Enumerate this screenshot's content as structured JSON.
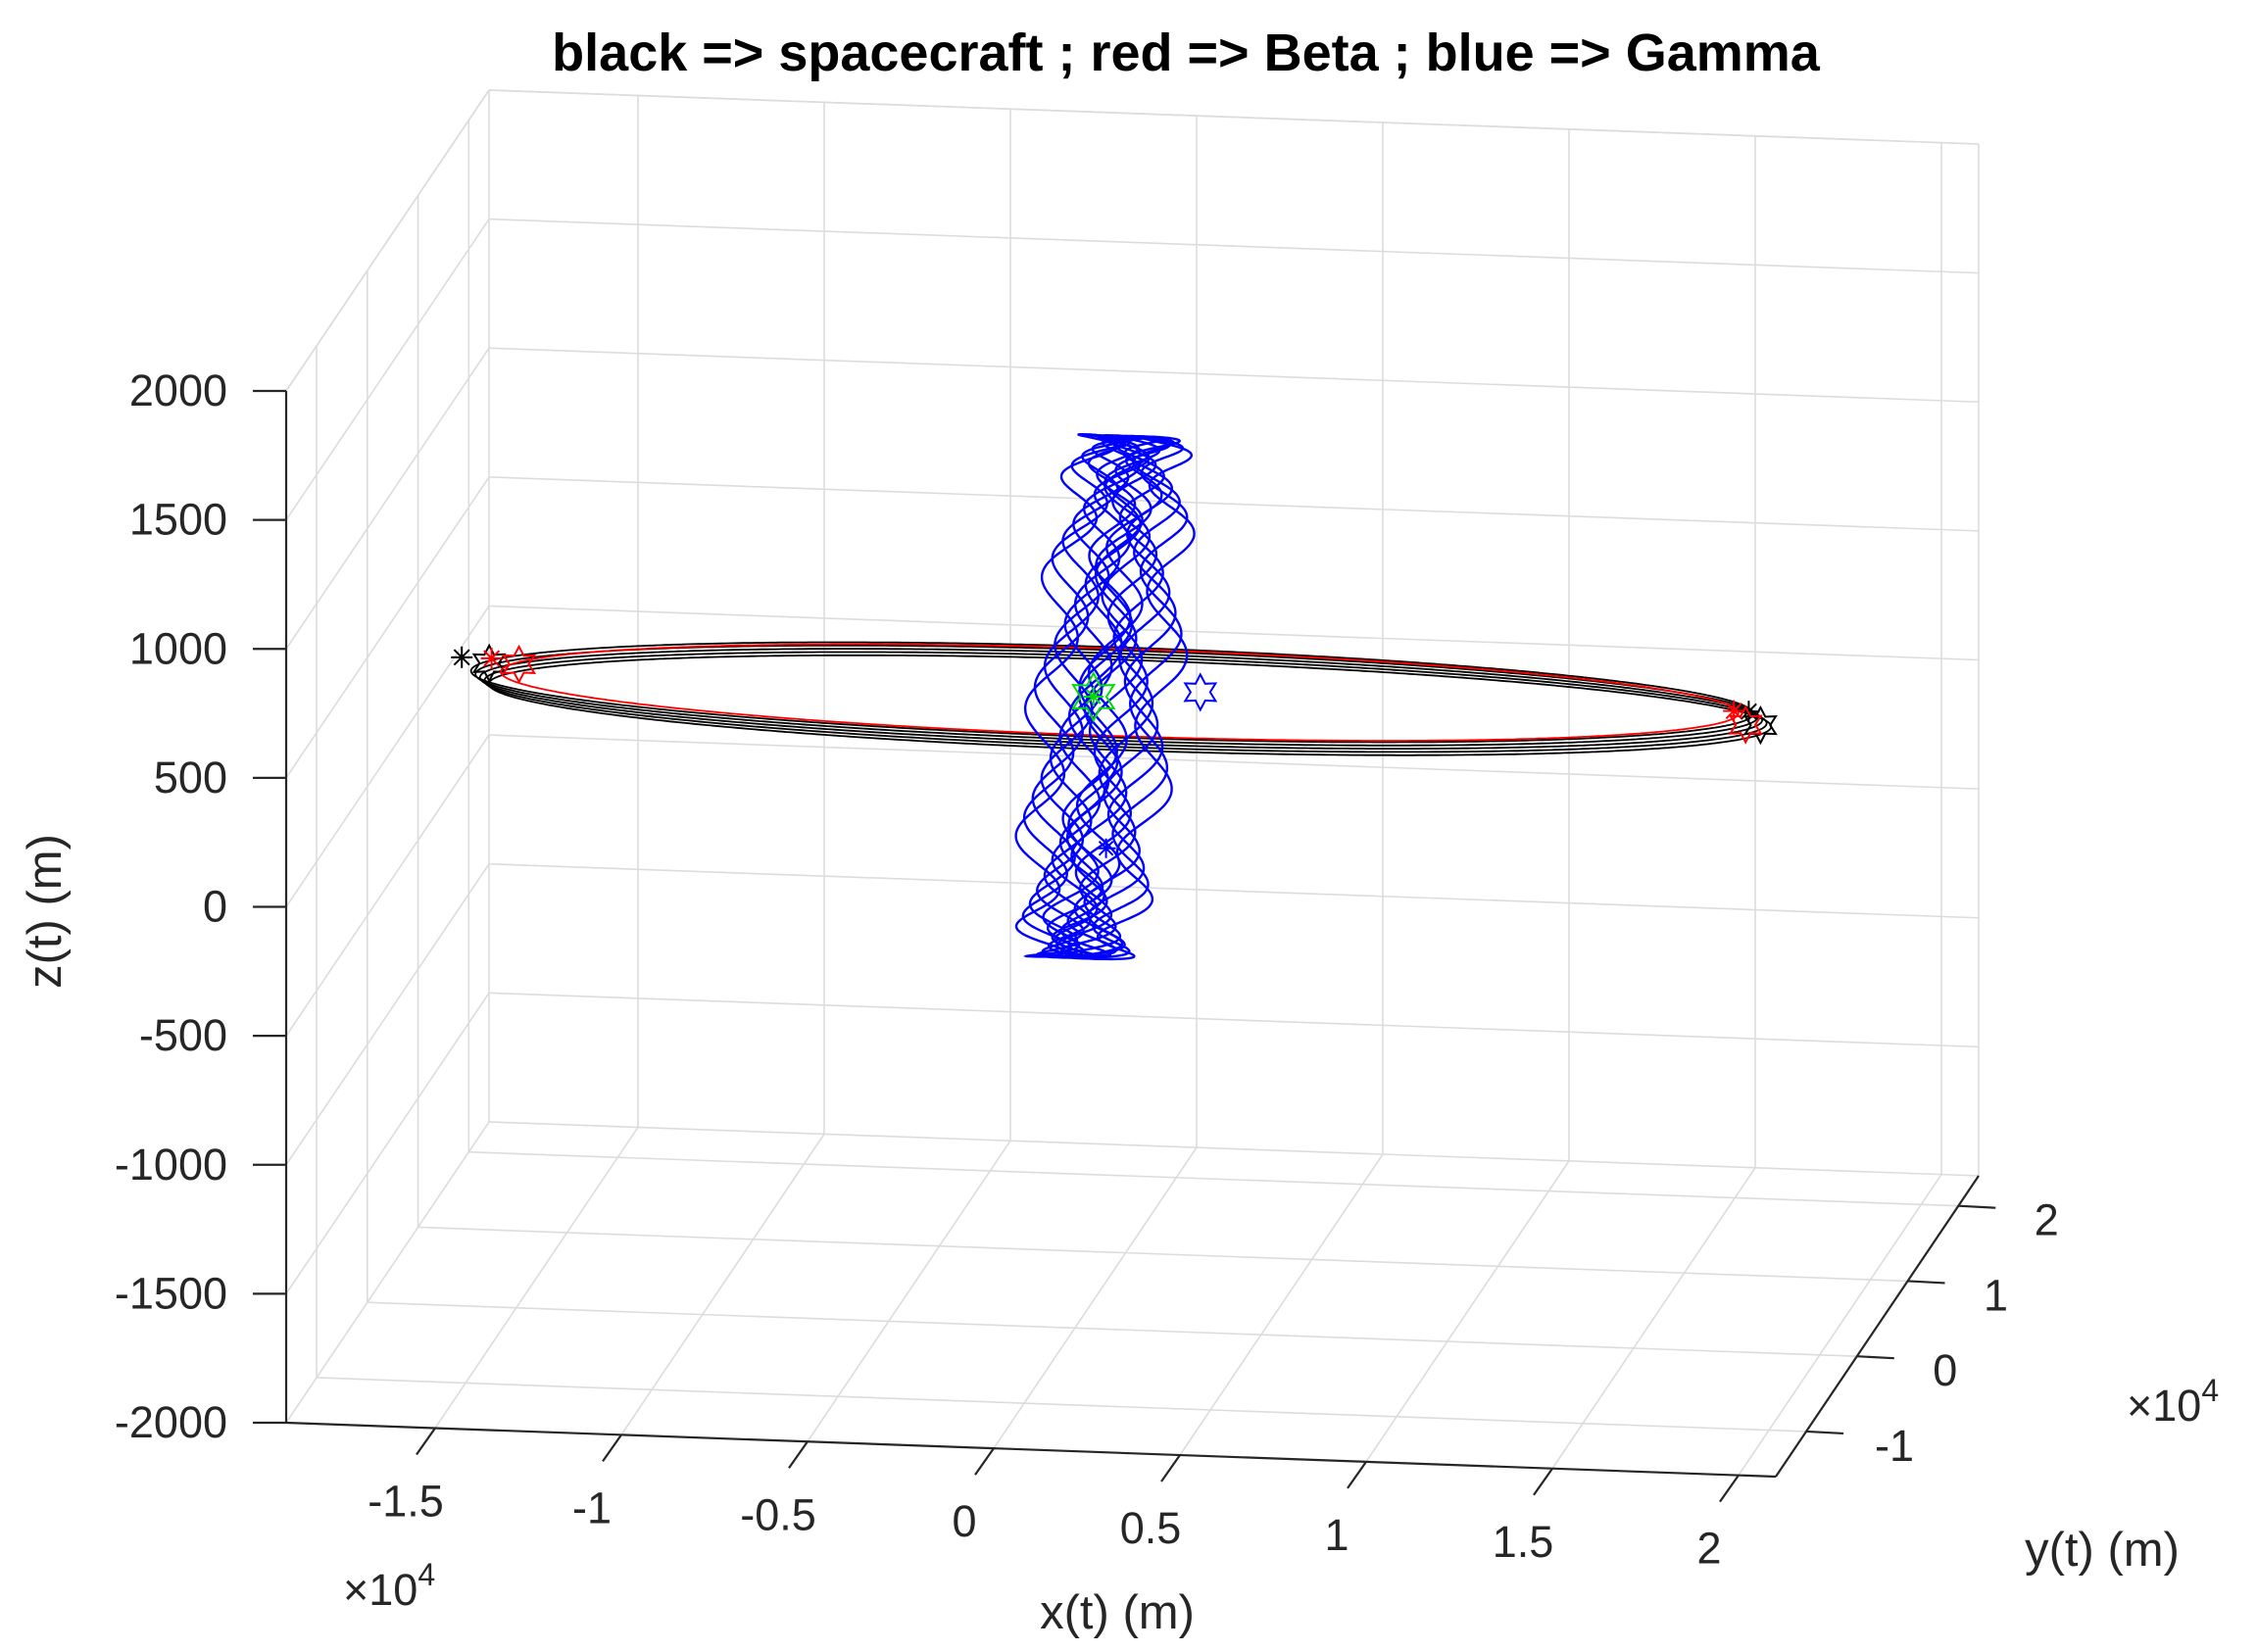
{
  "chart_data": {
    "type": "line",
    "title": "black => spacecraft ;    red => Beta ;     blue => Gamma",
    "xlabel": "x(t)   (m)",
    "ylabel": "y(t)   (m)",
    "zlabel": "z(t)   (m)",
    "x_exponent": "×10^4",
    "y_exponent": "×10^4",
    "xlim": [
      -1.9,
      2.1
    ],
    "ylim": [
      -1.6,
      2.4
    ],
    "zlim": [
      -2000,
      2000
    ],
    "x_ticks": [
      -1.5,
      -1,
      -0.5,
      0,
      0.5,
      1,
      1.5,
      2
    ],
    "x_tick_labels": [
      "-1.5",
      "-1",
      "-0.5",
      "0",
      "0.5",
      "1",
      "1.5",
      "2"
    ],
    "y_ticks": [
      -1,
      0,
      1,
      2
    ],
    "y_tick_labels": [
      "-1",
      "0",
      "1",
      "2"
    ],
    "z_ticks": [
      -2000,
      -1500,
      -1000,
      -500,
      0,
      500,
      1000,
      1500,
      2000
    ],
    "z_tick_labels": [
      "-2000",
      "-1500",
      "-1000",
      "-500",
      "0",
      "500",
      "1000",
      "1500",
      "2000"
    ],
    "grid": true,
    "series": [
      {
        "name": "spacecraft",
        "color": "#000000",
        "kind": "orbit",
        "loops": 5,
        "semi_major_x": 1.72,
        "semi_minor_y": 0.52,
        "center_x": 0.1,
        "center_z": 470,
        "start_marker": "asterisk",
        "end_marker": "hexagram"
      },
      {
        "name": "Beta",
        "color": "#ff0000",
        "kind": "orbit",
        "loops": 1,
        "semi_major_x": 1.66,
        "semi_minor_y": 0.5,
        "center_x": 0.12,
        "center_z": 470,
        "start_marker": "asterisk",
        "end_marker": "hexagram"
      },
      {
        "name": "Gamma",
        "color": "#0000ff",
        "kind": "ring",
        "loops": 9,
        "radius_y": 0.6,
        "radius_z": 1000,
        "center_x": 0.05,
        "center_z": 450,
        "start_marker": "asterisk",
        "end_marker": "hexagram"
      },
      {
        "name": "center",
        "color": "#00dd00",
        "kind": "point",
        "x": 0.05,
        "y": 0,
        "z": 450,
        "marker": "hexagram"
      }
    ]
  }
}
